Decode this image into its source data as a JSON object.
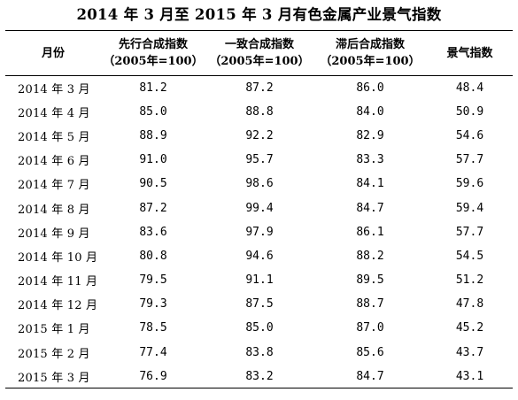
{
  "title": "2014 年 3 月至 2015 年 3 月有色金属产业景气指数",
  "headers": {
    "month": "月份",
    "leading": "先行合成指数",
    "leading_sub": "（2005年=100）",
    "coincident": "一致合成指数",
    "coincident_sub": "（2005年=100）",
    "lagging": "滞后合成指数",
    "lagging_sub": "（2005年=100）",
    "prosperity": "景气指数"
  },
  "rows": [
    {
      "month": "2014 年 3 月",
      "leading": "81.2",
      "coincident": "87.2",
      "lagging": "86.0",
      "prosperity": "48.4"
    },
    {
      "month": "2014 年 4 月",
      "leading": "85.0",
      "coincident": "88.8",
      "lagging": "84.0",
      "prosperity": "50.9"
    },
    {
      "month": "2014 年 5 月",
      "leading": "88.9",
      "coincident": "92.2",
      "lagging": "82.9",
      "prosperity": "54.6"
    },
    {
      "month": "2014 年 6 月",
      "leading": "91.0",
      "coincident": "95.7",
      "lagging": "83.3",
      "prosperity": "57.7"
    },
    {
      "month": "2014 年 7 月",
      "leading": "90.5",
      "coincident": "98.6",
      "lagging": "84.1",
      "prosperity": "59.6"
    },
    {
      "month": "2014 年 8 月",
      "leading": "87.2",
      "coincident": "99.4",
      "lagging": "84.7",
      "prosperity": "59.4"
    },
    {
      "month": "2014 年 9 月",
      "leading": "83.6",
      "coincident": "97.9",
      "lagging": "86.1",
      "prosperity": "57.7"
    },
    {
      "month": "2014 年 10 月",
      "leading": "80.8",
      "coincident": "94.6",
      "lagging": "88.2",
      "prosperity": "54.5"
    },
    {
      "month": "2014 年 11 月",
      "leading": "79.5",
      "coincident": "91.1",
      "lagging": "89.5",
      "prosperity": "51.2"
    },
    {
      "month": "2014 年 12 月",
      "leading": "79.3",
      "coincident": "87.5",
      "lagging": "88.7",
      "prosperity": "47.8"
    },
    {
      "month": "2015 年 1 月",
      "leading": "78.5",
      "coincident": "85.0",
      "lagging": "87.0",
      "prosperity": "45.2"
    },
    {
      "month": "2015 年 2 月",
      "leading": "77.4",
      "coincident": "83.8",
      "lagging": "85.6",
      "prosperity": "43.7"
    },
    {
      "month": "2015 年 3 月",
      "leading": "76.9",
      "coincident": "83.2",
      "lagging": "84.7",
      "prosperity": "43.1"
    }
  ]
}
